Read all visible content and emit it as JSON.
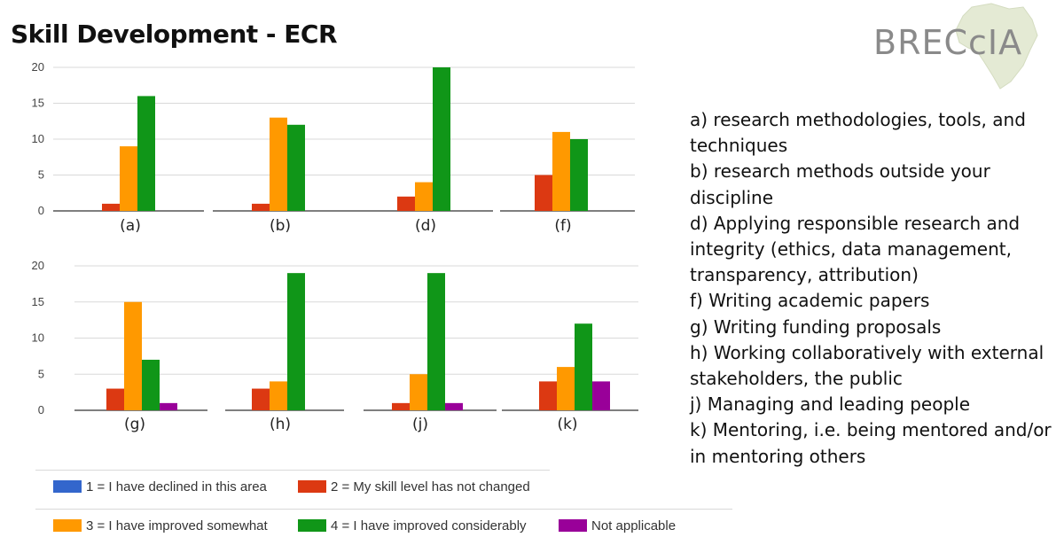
{
  "title": "Skill Development - ECR",
  "logo": {
    "text": "BRECcIA"
  },
  "colors": {
    "declined": "#3366cc",
    "not_changed": "#dc3912",
    "improved_somewhat": "#ff9900",
    "improved_considerably": "#109618",
    "not_applicable": "#990099",
    "grid": "#d9d9d9",
    "axis": "#333333"
  },
  "chart_data": [
    {
      "type": "bar",
      "ylim": [
        0,
        20
      ],
      "yticks": [
        0,
        5,
        10,
        15,
        20
      ],
      "categories": [
        "(a)",
        "(b)",
        "(d)",
        "(f)"
      ],
      "series": [
        {
          "name": "1 = I have declined in this area",
          "key": "declined",
          "values": [
            0,
            0,
            0,
            0
          ]
        },
        {
          "name": "2 = My skill level has not changed",
          "key": "not_changed",
          "values": [
            1,
            1,
            2,
            5
          ]
        },
        {
          "name": "3 = I have improved somewhat",
          "key": "improved_somewhat",
          "values": [
            9,
            13,
            4,
            11
          ]
        },
        {
          "name": "4 = I have improved considerably",
          "key": "improved_considerably",
          "values": [
            16,
            12,
            20,
            10
          ]
        },
        {
          "name": "Not applicable",
          "key": "not_applicable",
          "values": [
            0,
            0,
            0,
            0
          ]
        }
      ]
    },
    {
      "type": "bar",
      "ylim": [
        0,
        20
      ],
      "yticks": [
        0,
        5,
        10,
        15,
        20
      ],
      "categories": [
        "(g)",
        "(h)",
        "(j)",
        "(k)"
      ],
      "series": [
        {
          "name": "1 = I have declined in this area",
          "key": "declined",
          "values": [
            0,
            0,
            0,
            0
          ]
        },
        {
          "name": "2 = My skill level has not changed",
          "key": "not_changed",
          "values": [
            3,
            3,
            1,
            4
          ]
        },
        {
          "name": "3 = I have improved somewhat",
          "key": "improved_somewhat",
          "values": [
            15,
            4,
            5,
            6
          ]
        },
        {
          "name": "4 = I have improved considerably",
          "key": "improved_considerably",
          "values": [
            7,
            19,
            19,
            12
          ]
        },
        {
          "name": "Not applicable",
          "key": "not_applicable",
          "values": [
            1,
            0,
            1,
            4
          ]
        }
      ]
    }
  ],
  "legend": [
    {
      "label": "1 = I have declined in this area",
      "key": "declined"
    },
    {
      "label": "2 = My skill level has not changed",
      "key": "not_changed"
    },
    {
      "label": "3 = I have improved somewhat",
      "key": "improved_somewhat"
    },
    {
      "label": "4 = I have improved considerably",
      "key": "improved_considerably"
    },
    {
      "label": "Not applicable",
      "key": "not_applicable"
    }
  ],
  "notes": [
    "a) research methodologies, tools, and techniques",
    "b) research methods outside your discipline",
    "d) Applying responsible research and integrity (ethics, data management, transparency, attribution)",
    "f) Writing academic papers",
    "g) Writing funding proposals",
    "h) Working collaboratively with external stakeholders, the public",
    "j) Managing and leading people",
    "k) Mentoring, i.e. being mentored and/or in mentoring others"
  ]
}
